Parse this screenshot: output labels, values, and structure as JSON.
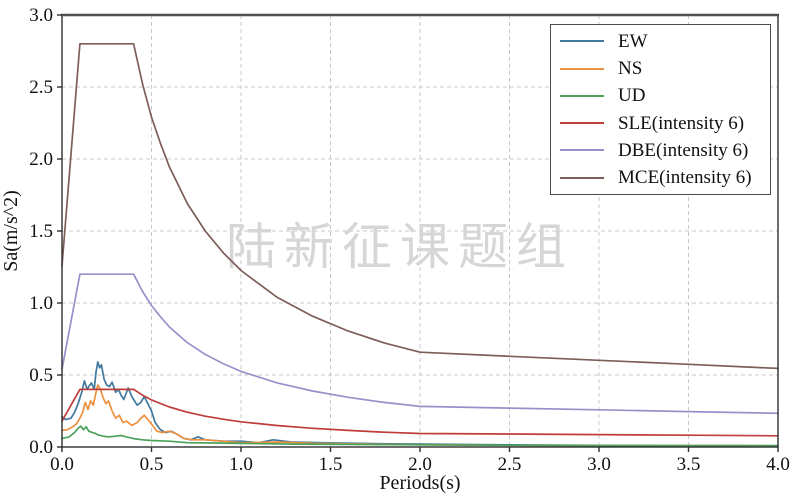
{
  "watermark": "陆新征课题组",
  "colors": {
    "grid": "#c9c9c9",
    "spine": "#2e2e2e",
    "top_spine": "#4f4f4f",
    "tick_text": "#111111",
    "watermark": "#d6d6d6"
  },
  "chart_data": {
    "type": "line",
    "title": "",
    "xlabel": "Periods(s)",
    "ylabel": "Sa(m/s^2)",
    "xlim": [
      0,
      4
    ],
    "ylim": [
      0,
      3
    ],
    "grid": "dashed",
    "legend_position": "upper right",
    "xticks": {
      "values": [
        0,
        0.5,
        1,
        1.5,
        2,
        2.5,
        3,
        3.5,
        4
      ],
      "labels": [
        "0.0",
        "0.5",
        "1.0",
        "1.5",
        "2.0",
        "2.5",
        "3.0",
        "3.5",
        "4.0"
      ]
    },
    "yticks": {
      "values": [
        0,
        0.5,
        1,
        1.5,
        2,
        2.5,
        3
      ],
      "labels": [
        "0.0",
        "0.5",
        "1.0",
        "1.5",
        "2.0",
        "2.5",
        "3.0"
      ]
    },
    "series": [
      {
        "name": "EW",
        "color": "#41789e",
        "points": [
          [
            0,
            0.21
          ],
          [
            0.02,
            0.19
          ],
          [
            0.05,
            0.2
          ],
          [
            0.07,
            0.24
          ],
          [
            0.09,
            0.3
          ],
          [
            0.11,
            0.38
          ],
          [
            0.125,
            0.46
          ],
          [
            0.14,
            0.4
          ],
          [
            0.15,
            0.42
          ],
          [
            0.165,
            0.445
          ],
          [
            0.18,
            0.4
          ],
          [
            0.19,
            0.52
          ],
          [
            0.2,
            0.59
          ],
          [
            0.21,
            0.55
          ],
          [
            0.22,
            0.57
          ],
          [
            0.235,
            0.47
          ],
          [
            0.25,
            0.43
          ],
          [
            0.265,
            0.42
          ],
          [
            0.28,
            0.45
          ],
          [
            0.3,
            0.38
          ],
          [
            0.315,
            0.4
          ],
          [
            0.33,
            0.36
          ],
          [
            0.345,
            0.33
          ],
          [
            0.37,
            0.41
          ],
          [
            0.39,
            0.35
          ],
          [
            0.42,
            0.29
          ],
          [
            0.44,
            0.31
          ],
          [
            0.46,
            0.35
          ],
          [
            0.48,
            0.3
          ],
          [
            0.5,
            0.25
          ],
          [
            0.52,
            0.17
          ],
          [
            0.55,
            0.12
          ],
          [
            0.58,
            0.1
          ],
          [
            0.61,
            0.11
          ],
          [
            0.64,
            0.09
          ],
          [
            0.68,
            0.06
          ],
          [
            0.72,
            0.05
          ],
          [
            0.76,
            0.07
          ],
          [
            0.8,
            0.05
          ],
          [
            0.9,
            0.04
          ],
          [
            1.0,
            0.04
          ],
          [
            1.1,
            0.03
          ],
          [
            1.18,
            0.05
          ],
          [
            1.28,
            0.035
          ],
          [
            1.45,
            0.03
          ],
          [
            1.65,
            0.025
          ],
          [
            2.0,
            0.02
          ],
          [
            2.5,
            0.015
          ],
          [
            3.0,
            0.012
          ],
          [
            3.5,
            0.01
          ],
          [
            4.0,
            0.01
          ]
        ]
      },
      {
        "name": "NS",
        "color": "#ec9140",
        "points": [
          [
            0,
            0.115
          ],
          [
            0.03,
            0.12
          ],
          [
            0.06,
            0.14
          ],
          [
            0.08,
            0.16
          ],
          [
            0.1,
            0.2
          ],
          [
            0.115,
            0.24
          ],
          [
            0.13,
            0.31
          ],
          [
            0.145,
            0.26
          ],
          [
            0.16,
            0.32
          ],
          [
            0.175,
            0.29
          ],
          [
            0.19,
            0.38
          ],
          [
            0.2,
            0.43
          ],
          [
            0.215,
            0.4
          ],
          [
            0.23,
            0.34
          ],
          [
            0.245,
            0.3
          ],
          [
            0.26,
            0.32
          ],
          [
            0.28,
            0.25
          ],
          [
            0.3,
            0.2
          ],
          [
            0.32,
            0.22
          ],
          [
            0.34,
            0.17
          ],
          [
            0.36,
            0.18
          ],
          [
            0.39,
            0.15
          ],
          [
            0.42,
            0.17
          ],
          [
            0.44,
            0.2
          ],
          [
            0.46,
            0.22
          ],
          [
            0.48,
            0.19
          ],
          [
            0.5,
            0.16
          ],
          [
            0.53,
            0.11
          ],
          [
            0.56,
            0.1
          ],
          [
            0.6,
            0.11
          ],
          [
            0.64,
            0.09
          ],
          [
            0.68,
            0.06
          ],
          [
            0.73,
            0.05
          ],
          [
            0.8,
            0.05
          ],
          [
            0.9,
            0.04
          ],
          [
            1.0,
            0.03
          ],
          [
            1.2,
            0.035
          ],
          [
            1.4,
            0.025
          ],
          [
            1.7,
            0.02
          ],
          [
            2.0,
            0.015
          ],
          [
            2.5,
            0.012
          ],
          [
            3.0,
            0.01
          ],
          [
            4.0,
            0.008
          ]
        ]
      },
      {
        "name": "UD",
        "color": "#4da25b",
        "points": [
          [
            0,
            0.06
          ],
          [
            0.04,
            0.07
          ],
          [
            0.07,
            0.1
          ],
          [
            0.09,
            0.13
          ],
          [
            0.105,
            0.145
          ],
          [
            0.12,
            0.12
          ],
          [
            0.135,
            0.14
          ],
          [
            0.15,
            0.11
          ],
          [
            0.17,
            0.1
          ],
          [
            0.185,
            0.095
          ],
          [
            0.2,
            0.085
          ],
          [
            0.23,
            0.075
          ],
          [
            0.26,
            0.07
          ],
          [
            0.3,
            0.075
          ],
          [
            0.33,
            0.08
          ],
          [
            0.36,
            0.07
          ],
          [
            0.4,
            0.058
          ],
          [
            0.45,
            0.05
          ],
          [
            0.5,
            0.045
          ],
          [
            0.6,
            0.04
          ],
          [
            0.7,
            0.03
          ],
          [
            0.85,
            0.028
          ],
          [
            1.0,
            0.025
          ],
          [
            1.3,
            0.02
          ],
          [
            1.6,
            0.018
          ],
          [
            2.0,
            0.015
          ],
          [
            2.5,
            0.012
          ],
          [
            3.0,
            0.01
          ],
          [
            4.0,
            0.008
          ]
        ]
      },
      {
        "name": "SLE(intensity 6)",
        "color": "#bf3d3b",
        "points": [
          [
            0,
            0.18
          ],
          [
            0.1,
            0.4
          ],
          [
            0.4,
            0.4
          ],
          [
            0.45,
            0.36
          ],
          [
            0.5,
            0.327
          ],
          [
            0.55,
            0.302
          ],
          [
            0.6,
            0.278
          ],
          [
            0.7,
            0.242
          ],
          [
            0.8,
            0.214
          ],
          [
            0.9,
            0.193
          ],
          [
            1.0,
            0.175
          ],
          [
            1.2,
            0.149
          ],
          [
            1.4,
            0.13
          ],
          [
            1.6,
            0.115
          ],
          [
            1.8,
            0.103
          ],
          [
            2.0,
            0.094
          ],
          [
            2.5,
            0.09
          ],
          [
            3.0,
            0.086
          ],
          [
            3.5,
            0.082
          ],
          [
            4.0,
            0.078
          ]
        ]
      },
      {
        "name": "DBE(intensity 6)",
        "color": "#9c8fc9",
        "points": [
          [
            0,
            0.54
          ],
          [
            0.1,
            1.2
          ],
          [
            0.4,
            1.2
          ],
          [
            0.45,
            1.08
          ],
          [
            0.5,
            0.982
          ],
          [
            0.55,
            0.905
          ],
          [
            0.6,
            0.833
          ],
          [
            0.7,
            0.725
          ],
          [
            0.8,
            0.643
          ],
          [
            0.9,
            0.579
          ],
          [
            1.0,
            0.525
          ],
          [
            1.2,
            0.446
          ],
          [
            1.4,
            0.389
          ],
          [
            1.6,
            0.345
          ],
          [
            1.8,
            0.31
          ],
          [
            2.0,
            0.282
          ],
          [
            2.5,
            0.27
          ],
          [
            3.0,
            0.258
          ],
          [
            3.5,
            0.246
          ],
          [
            4.0,
            0.234
          ]
        ]
      },
      {
        "name": "MCE(intensity 6)",
        "color": "#7d5e58",
        "points": [
          [
            0,
            1.26
          ],
          [
            0.1,
            2.8
          ],
          [
            0.4,
            2.8
          ],
          [
            0.45,
            2.52
          ],
          [
            0.5,
            2.29
          ],
          [
            0.55,
            2.11
          ],
          [
            0.6,
            1.945
          ],
          [
            0.7,
            1.691
          ],
          [
            0.8,
            1.501
          ],
          [
            0.9,
            1.35
          ],
          [
            1.0,
            1.226
          ],
          [
            1.2,
            1.041
          ],
          [
            1.4,
            0.908
          ],
          [
            1.6,
            0.805
          ],
          [
            1.8,
            0.723
          ],
          [
            2.0,
            0.658
          ],
          [
            2.5,
            0.63
          ],
          [
            3.0,
            0.602
          ],
          [
            3.5,
            0.574
          ],
          [
            4.0,
            0.546
          ]
        ]
      }
    ]
  }
}
